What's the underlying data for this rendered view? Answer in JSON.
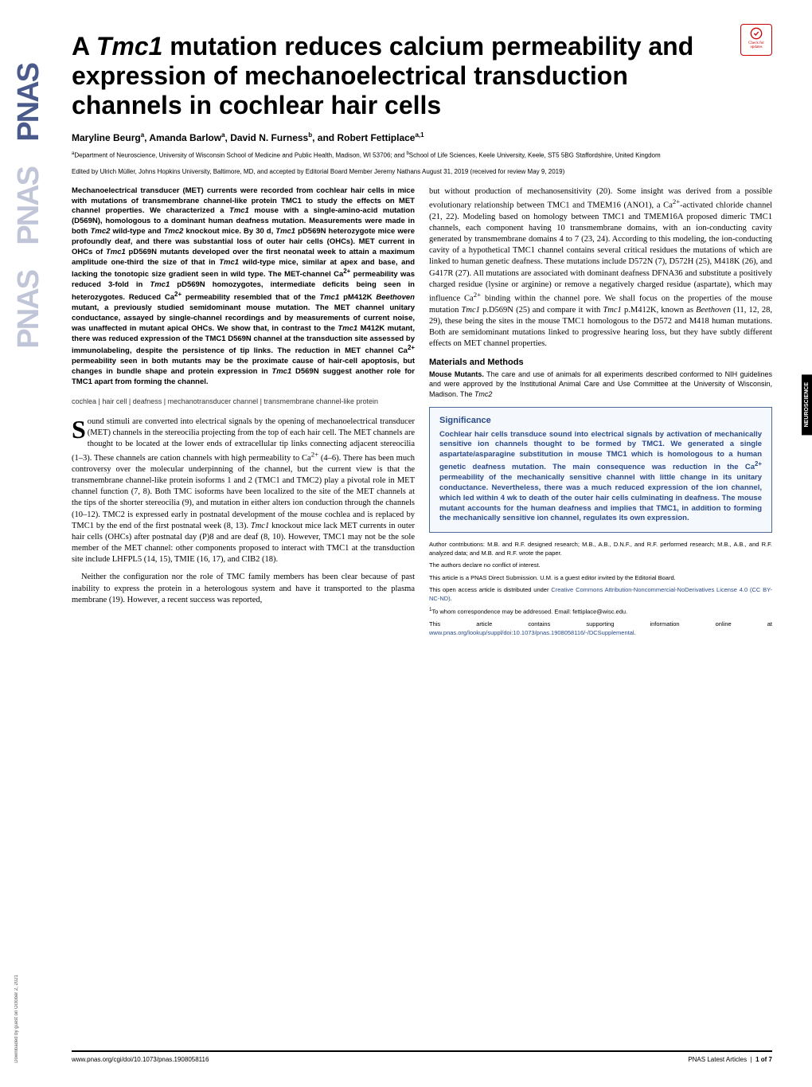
{
  "check_updates": {
    "label1": "Check for",
    "label2": "updates"
  },
  "title": {
    "part1": "A ",
    "italic1": "Tmc1",
    "part2": " mutation reduces calcium permeability and expression of mechanoelectrical transduction channels in cochlear hair cells"
  },
  "authors": "Maryline Beurg<sup>a</sup>, Amanda Barlow<sup>a</sup>, David N. Furness<sup>b</sup>, and Robert Fettiplace<sup>a,1</sup>",
  "affiliations": "<sup>a</sup>Department of Neuroscience, University of Wisconsin School of Medicine and Public Health, Madison, WI 53706; and <sup>b</sup>School of Life Sciences, Keele University, Keele, ST5 5BG Staffordshire, United Kingdom",
  "edited_by": "Edited by Ulrich Müller, Johns Hopkins University, Baltimore, MD, and accepted by Editorial Board Member Jeremy Nathans August 31, 2019 (received for review May 9, 2019)",
  "abstract": "Mechanoelectrical transducer (MET) currents were recorded from cochlear hair cells in mice with mutations of transmembrane channel-like protein TMC1 to study the effects on MET channel properties. We characterized a <span class='italic'>Tmc1</span> mouse with a single-amino-acid mutation (D569N), homologous to a dominant human deafness mutation. Measurements were made in both <span class='italic'>Tmc2</span> wild-type and <span class='italic'>Tmc2</span> knockout mice. By 30 d, <span class='italic'>Tmc1</span> pD569N heterozygote mice were profoundly deaf, and there was substantial loss of outer hair cells (OHCs). MET current in OHCs of <span class='italic'>Tmc1</span> pD569N mutants developed over the first neonatal week to attain a maximum amplitude one-third the size of that in <span class='italic'>Tmc1</span> wild-type mice, similar at apex and base, and lacking the tonotopic size gradient seen in wild type. The MET-channel Ca<sup>2+</sup> permeability was reduced 3-fold in <span class='italic'>Tmc1</span> pD569N homozygotes, intermediate deficits being seen in heterozygotes. Reduced Ca<sup>2+</sup> permeability resembled that of the <span class='italic'>Tmc1</span> pM412K <span class='italic'>Beethoven</span> mutant, a previously studied semidominant mouse mutation. The MET channel unitary conductance, assayed by single-channel recordings and by measurements of current noise, was unaffected in mutant apical OHCs. We show that, in contrast to the <span class='italic'>Tmc1</span> M412K mutant, there was reduced expression of the TMC1 D569N channel at the transduction site assessed by immunolabeling, despite the persistence of tip links. The reduction in MET channel Ca<sup>2+</sup> permeability seen in both mutants may be the proximate cause of hair-cell apoptosis, but changes in bundle shape and protein expression in <span class='italic'>Tmc1</span> D569N suggest another role for TMC1 apart from forming the channel.",
  "keywords": "cochlea | hair cell | deafness | mechanotransducer channel | transmembrane channel-like protein",
  "body_para1": "ound stimuli are converted into electrical signals by the opening of mechanoelectrical transducer (MET) channels in the stereocilia projecting from the top of each hair cell. The MET channels are thought to be located at the lower ends of extracellular tip links connecting adjacent stereocilia (1–3). These channels are cation channels with high permeability to Ca<sup>2+</sup> (4–6). There has been much controversy over the molecular underpinning of the channel, but the current view is that the transmembrane channel-like protein isoforms 1 and 2 (TMC1 and TMC2) play a pivotal role in MET channel function (7, 8). Both TMC isoforms have been localized to the site of the MET channels at the tips of the shorter stereocilia (9), and mutation in either alters ion conduction through the channels (10–12). TMC2 is expressed early in postnatal development of the mouse cochlea and is replaced by TMC1 by the end of the first postnatal week (8, 13). <span class='italic'>Tmc1</span> knockout mice lack MET currents in outer hair cells (OHCs) after postnatal day (P)8 and are deaf (8, 10). However, TMC1 may not be the sole member of the MET channel: other components proposed to interact with TMC1 at the transduction site include LHFPL5 (14, 15), TMIE (16, 17), and CIB2 (18).",
  "body_para2": "Neither the configuration nor the role of TMC family members has been clear because of past inability to express the protein in a heterologous system and have it transported to the plasma membrane (19). However, a recent success was reported,",
  "body_col2_para1": "but without production of mechanosensitivity (20). Some insight was derived from a possible evolutionary relationship between TMC1 and TMEM16 (ANO1), a Ca<sup>2+</sup>-activated chloride channel (21, 22). Modeling based on homology between TMC1 and TMEM16A proposed dimeric TMC1 channels, each component having 10 transmembrane domains, with an ion-conducting cavity generated by transmembrane domains 4 to 7 (23, 24). According to this modeling, the ion-conducting cavity of a hypothetical TMC1 channel contains several critical residues the mutations of which are linked to human genetic deafness. These mutations include D572N (7), D572H (25), M418K (26), and G417R (27). All mutations are associated with dominant deafness DFNA36 and substitute a positively charged residue (lysine or arginine) or remove a negatively charged residue (aspartate), which may influence Ca<sup>2+</sup> binding within the channel pore. We shall focus on the properties of the mouse mutation <span class='italic'>Tmc1</span> p.D569N (25) and compare it with <span class='italic'>Tmc1</span> p.M412K, known as <span class='italic'>Beethoven</span> (11, 12, 28, 29), these being the sites in the mouse TMC1 homologous to the D572 and M418 human mutations. Both are semidominant mutations linked to progressive hearing loss, but they have subtly different effects on MET channel properties.",
  "materials_heading": "Materials and Methods",
  "materials_body": "<span class='bold'>Mouse Mutants.</span> The care and use of animals for all experiments described conformed to NIH guidelines and were approved by the Institutional Animal Care and Use Committee at the University of Wisconsin, Madison. The <span class='italic'>Tmc2</span>",
  "significance": {
    "title": "Significance",
    "body": "Cochlear hair cells transduce sound into electrical signals by activation of mechanically sensitive ion channels thought to be formed by TMC1. We generated a single aspartate/asparagine substitution in mouse TMC1 which is homologous to a human genetic deafness mutation. The main consequence was reduction in the Ca<sup>2+</sup> permeability of the mechanically sensitive channel with little change in its unitary conductance. Nevertheless, there was a much reduced expression of the ion channel, which led within 4 wk to death of the outer hair cells culminating in deafness. The mouse mutant accounts for the human deafness and implies that TMC1, in addition to forming the mechanically sensitive ion channel, regulates its own expression."
  },
  "author_info": {
    "contributions": "Author contributions: M.B. and R.F. designed research; M.B., A.B., D.N.F., and R.F. performed research; M.B., A.B., and R.F. analyzed data; and M.B. and R.F. wrote the paper.",
    "conflict": "The authors declare no conflict of interest.",
    "submission": "This article is a PNAS Direct Submission. U.M. is a guest editor invited by the Editorial Board.",
    "license_pre": "This open access article is distributed under ",
    "license_link": "Creative Commons Attribution-Noncommercial-NoDerivatives License 4.0 (CC BY-NC-ND)",
    "corresponding": "<sup>1</sup>To whom correspondence may be addressed. Email: fettiplace@wisc.edu.",
    "supporting_pre": "This article contains supporting information online at ",
    "supporting_link": "www.pnas.org/lookup/suppl/doi:10.1073/pnas.1908058116/-/DCSupplemental"
  },
  "footer": {
    "doi": "www.pnas.org/cgi/doi/10.1073/pnas.1908058116",
    "page_label": "PNAS Latest Articles",
    "page_num": "1 of 7"
  },
  "neuro_tab": "NEUROSCIENCE",
  "download_note": "Downloaded by guest on October 2, 2021",
  "pnas_logo": "PNAS"
}
